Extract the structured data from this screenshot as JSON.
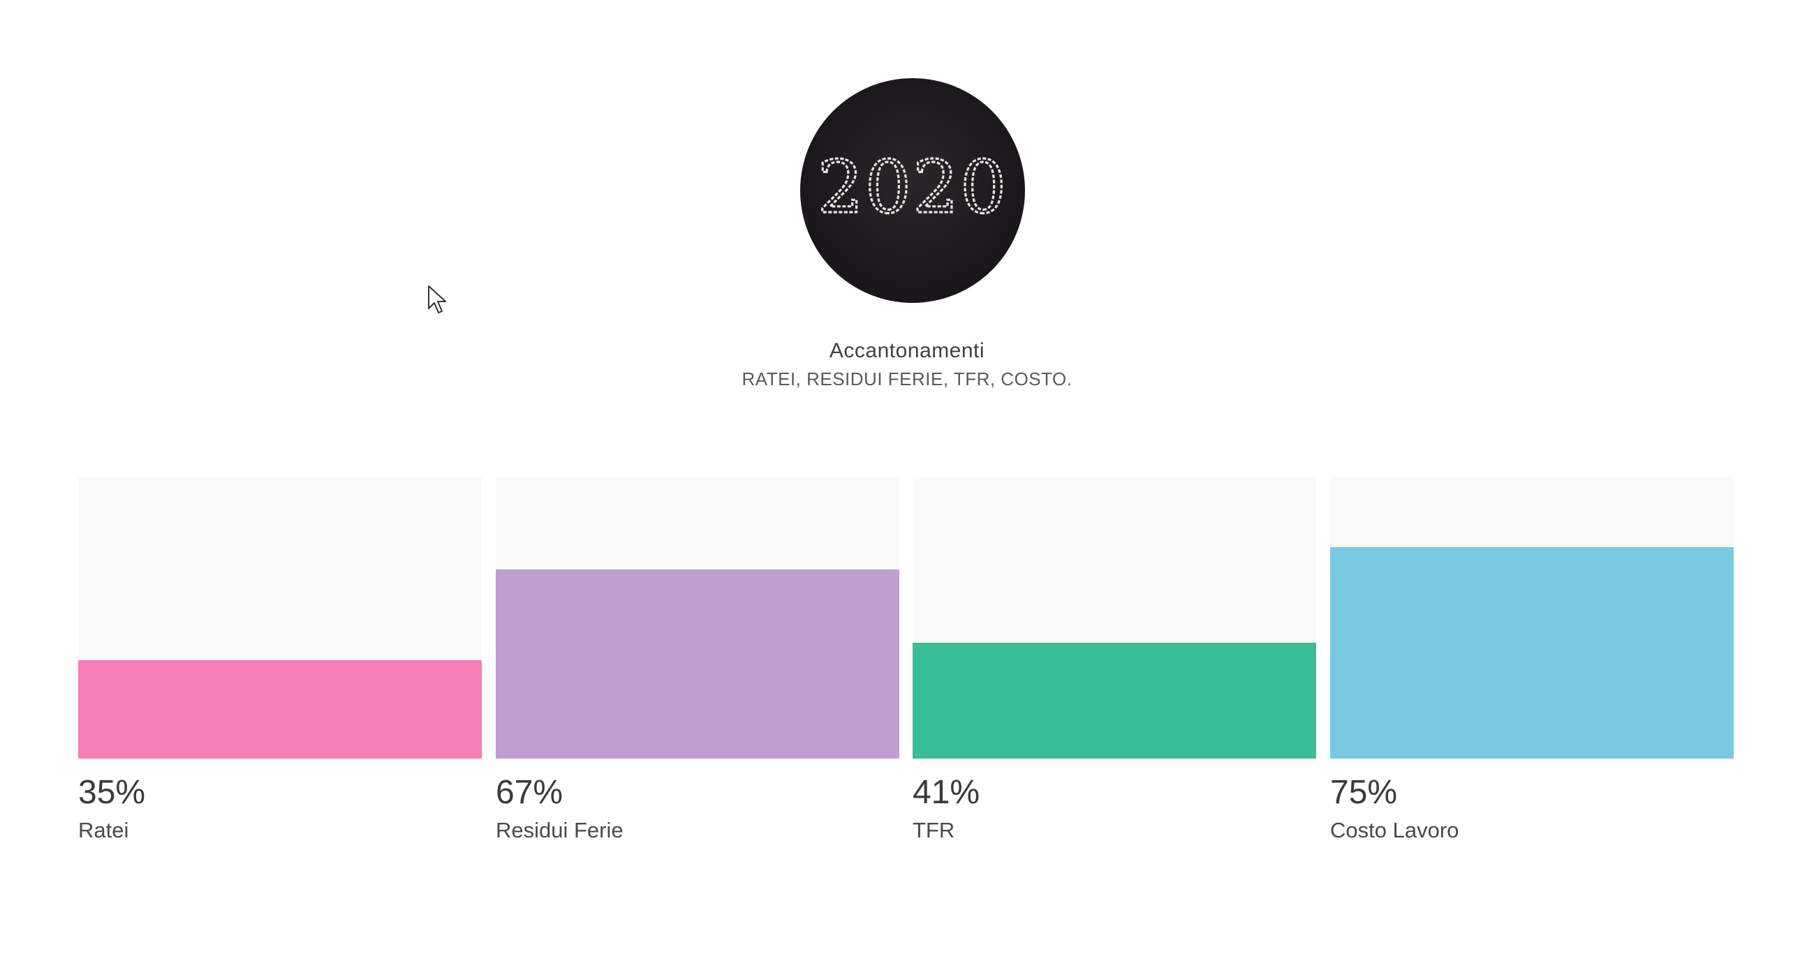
{
  "header": {
    "logo_text": "2020",
    "title": "Accantonamenti",
    "subtitle": "RATEI, RESIDUI FERIE, TFR, COSTO."
  },
  "chart_data": {
    "type": "bar",
    "categories": [
      "Ratei",
      "Residui Ferie",
      "TFR",
      "Costo Lavoro"
    ],
    "values": [
      35,
      67,
      41,
      75
    ],
    "value_labels": [
      "35%",
      "67%",
      "41%",
      "75%"
    ],
    "colors": [
      "#f77eb6",
      "#bf9fcf",
      "#37be99",
      "#79c9e2"
    ],
    "ylim": [
      0,
      100
    ],
    "grid": false,
    "title": "",
    "xlabel": "",
    "ylabel": ""
  }
}
